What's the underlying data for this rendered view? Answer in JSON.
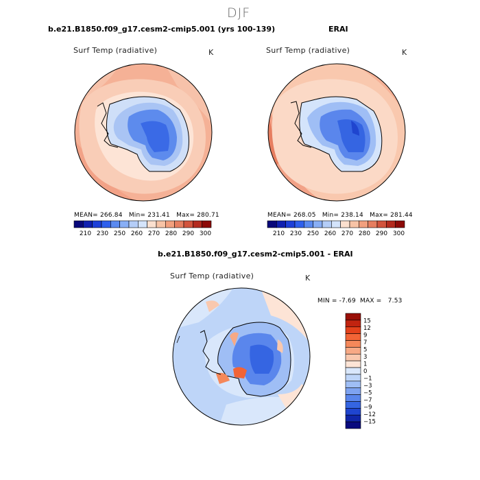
{
  "figure_title": "DJF",
  "panels": [
    {
      "title": "b.e21.B1850.f09_g17.cesm2-cmip5.001 (yrs 100-139)",
      "variable": "Surf Temp (radiative)",
      "units": "K",
      "mean_label": "MEAN=",
      "mean": "266.84",
      "min_label": "Min=",
      "min": "231.41",
      "max_label": "Max=",
      "max": "280.71"
    },
    {
      "title": "ERAI",
      "variable": "Surf Temp (radiative)",
      "units": "K",
      "mean_label": "MEAN=",
      "mean": "268.05",
      "min_label": "Min=",
      "min": "238.14",
      "max_label": "Max=",
      "max": "281.44"
    }
  ],
  "diff_panel": {
    "title": "b.e21.B1850.f09_g17.cesm2-cmip5.001 - ERAI",
    "variable": "Surf Temp (radiative)",
    "units": "K",
    "min_label": "MIN =",
    "min": "-7.69",
    "max_label": "MAX =",
    "max": "7.53"
  },
  "colorbar_horizontal": {
    "colors": [
      "#08087a",
      "#1020b0",
      "#1e40d8",
      "#2f60ec",
      "#5a8af0",
      "#88aef5",
      "#b4cdf7",
      "#d4e4fb",
      "#fbe0cf",
      "#f7c3a6",
      "#f2a07e",
      "#e67e60",
      "#d2543d",
      "#b32a1e",
      "#8c0a08"
    ],
    "tick_labels": [
      "210",
      "230",
      "250",
      "260",
      "270",
      "280",
      "290",
      "300"
    ]
  },
  "colorbar_vertical": {
    "colors": [
      "#990f08",
      "#c22410",
      "#e4421c",
      "#f26436",
      "#f5885a",
      "#f7a985",
      "#f9c8ae",
      "#fde4d6",
      "#d9e7fb",
      "#bed5f8",
      "#9fbef5",
      "#7ea3f1",
      "#5a86ec",
      "#3565e2",
      "#1f45cf",
      "#1026a8",
      "#080a7e"
    ],
    "tick_labels": [
      "15",
      "12",
      "9",
      "7",
      "5",
      "3",
      "1",
      "0",
      "−1",
      "−3",
      "−5",
      "−7",
      "−9",
      "−12",
      "−15"
    ]
  },
  "chart_data": [
    {
      "type": "heatmap",
      "title": "b.e21.B1850.f09_g17.cesm2-cmip5.001 (yrs 100-139)",
      "variable": "Surf Temp (radiative)",
      "units": "K",
      "projection": "south polar stereographic",
      "summary": {
        "mean": 266.84,
        "min": 231.41,
        "max": 280.71
      },
      "contour_levels": [
        210,
        220,
        230,
        240,
        250,
        255,
        260,
        265,
        270,
        275,
        280,
        285,
        290,
        295,
        300
      ]
    },
    {
      "type": "heatmap",
      "title": "ERAI",
      "variable": "Surf Temp (radiative)",
      "units": "K",
      "projection": "south polar stereographic",
      "summary": {
        "mean": 268.05,
        "min": 238.14,
        "max": 281.44
      },
      "contour_levels": [
        210,
        220,
        230,
        240,
        250,
        255,
        260,
        265,
        270,
        275,
        280,
        285,
        290,
        295,
        300
      ]
    },
    {
      "type": "heatmap",
      "title": "b.e21.B1850.f09_g17.cesm2-cmip5.001 - ERAI",
      "variable": "Surf Temp (radiative)",
      "units": "K",
      "projection": "south polar stereographic",
      "summary": {
        "min": -7.69,
        "max": 7.53
      },
      "contour_levels": [
        -15,
        -12,
        -9,
        -7,
        -5,
        -3,
        -1,
        0,
        1,
        3,
        5,
        7,
        9,
        12,
        15
      ]
    }
  ]
}
